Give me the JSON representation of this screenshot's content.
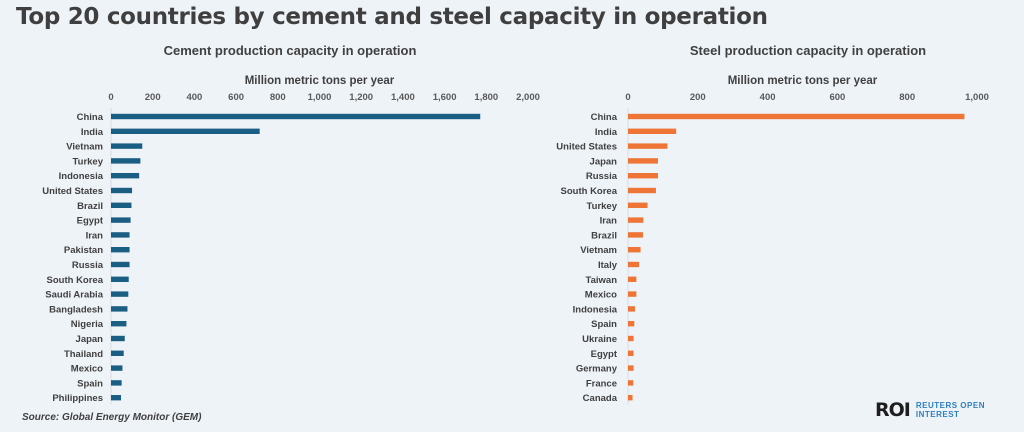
{
  "title": "Top 20 countries by cement and steel capacity in operation",
  "source": "Source:  Global Energy Monitor (GEM)",
  "logo": {
    "mark": "ROI",
    "line1": "REUTERS OPEN",
    "line2": "INTEREST"
  },
  "chart_data": [
    {
      "type": "bar",
      "orientation": "horizontal",
      "title": "Cement production capacity in operation",
      "xlabel": "Million metric tons per year",
      "xlim": [
        0,
        2000
      ],
      "ticks": [
        "0",
        "200",
        "400",
        "600",
        "800",
        "1,000",
        "1,200",
        "1,400",
        "1,600",
        "1,800",
        "2,000"
      ],
      "color": "#1b5e83",
      "categories": [
        "China",
        "India",
        "Vietnam",
        "Turkey",
        "Indonesia",
        "United States",
        "Brazil",
        "Egypt",
        "Iran",
        "Pakistan",
        "Russia",
        "South Korea",
        "Saudi Arabia",
        "Bangladesh",
        "Nigeria",
        "Japan",
        "Thailand",
        "Mexico",
        "Spain",
        "Philippines"
      ],
      "values": [
        1771,
        713,
        150,
        141,
        135,
        101,
        98,
        94,
        89,
        89,
        89,
        85,
        83,
        79,
        74,
        66,
        61,
        55,
        51,
        48
      ]
    },
    {
      "type": "bar",
      "orientation": "horizontal",
      "title": "Steel production capacity in operation",
      "xlabel": "Million metric tons per year",
      "xlim": [
        0,
        1000
      ],
      "ticks": [
        "0",
        "200",
        "400",
        "600",
        "800",
        "1,000"
      ],
      "color": "#ee7536",
      "categories": [
        "China",
        "India",
        "United States",
        "Japan",
        "Russia",
        "South Korea",
        "Turkey",
        "Iran",
        "Brazil",
        "Vietnam",
        "Italy",
        "Taiwan",
        "Mexico",
        "Indonesia",
        "Spain",
        "Ukraine",
        "Egypt",
        "Germany",
        "France",
        "Canada"
      ],
      "values": [
        964,
        138,
        113,
        86,
        86,
        80,
        56,
        44,
        43,
        36,
        32,
        24,
        24,
        20,
        18,
        16,
        16,
        16,
        15,
        13
      ]
    }
  ]
}
